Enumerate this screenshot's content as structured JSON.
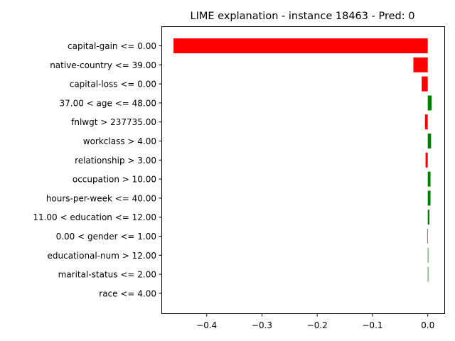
{
  "chart_data": {
    "type": "bar",
    "orientation": "horizontal",
    "title": "LIME explanation - instance 18463 - Pred: 0",
    "xlabel": "",
    "ylabel": "",
    "categories": [
      "capital-gain <= 0.00",
      "native-country <= 39.00",
      "capital-loss <= 0.00",
      "37.00 < age <= 48.00",
      "fnlwgt > 237735.00",
      "workclass > 4.00",
      "relationship > 3.00",
      "occupation > 10.00",
      "hours-per-week <= 40.00",
      "11.00 < education <= 12.00",
      "0.00 < gender <= 1.00",
      "educational-num > 12.00",
      "marital-status <= 2.00",
      "race <= 4.00"
    ],
    "values": [
      -0.46,
      -0.026,
      -0.011,
      0.007,
      -0.005,
      0.006,
      -0.004,
      0.005,
      0.005,
      0.003,
      -0.001,
      0.001,
      0.001,
      0.0
    ],
    "xlim": [
      -0.482,
      0.03
    ],
    "xticks": [
      -0.4,
      -0.3,
      -0.2,
      -0.1,
      0.0
    ],
    "xtick_labels": [
      "−0.4",
      "−0.3",
      "−0.2",
      "−0.1",
      "0.0"
    ],
    "grid": false,
    "colors": {
      "positive": "#008000",
      "negative": "#ff0000"
    }
  }
}
